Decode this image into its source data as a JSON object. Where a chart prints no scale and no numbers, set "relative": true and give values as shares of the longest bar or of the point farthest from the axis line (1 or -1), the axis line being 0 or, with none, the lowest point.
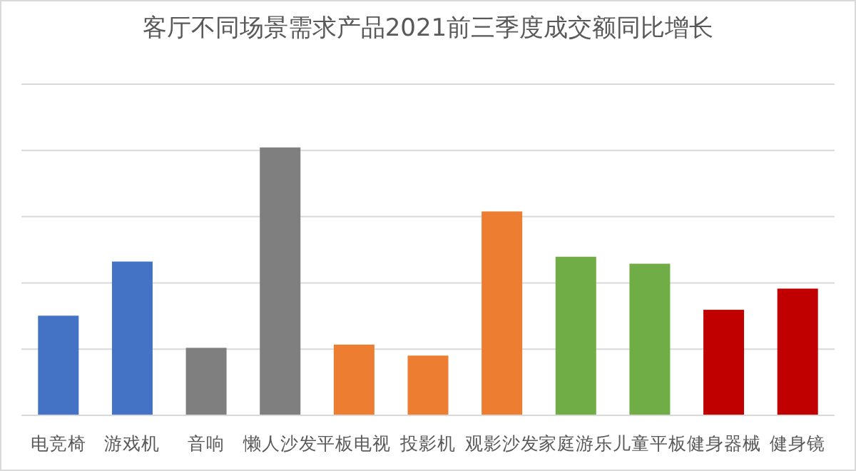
{
  "chart_data": {
    "type": "bar",
    "title": "客厅不同场景需求产品2021前三季度成交额同比增长",
    "relative": true,
    "grid": "y",
    "categories": [
      "电竞椅",
      "游戏机",
      "音响",
      "懒人沙发",
      "平板电视",
      "投影机",
      "观影沙发",
      "家庭游乐",
      "儿童平板",
      "健身器械",
      "健身镜"
    ],
    "values": [
      0.372,
      0.574,
      0.252,
      1,
      0.264,
      0.223,
      0.761,
      0.592,
      0.566,
      0.394,
      0.473
    ],
    "colors": [
      "#4472c4",
      "#4472c4",
      "#7f7f7f",
      "#7f7f7f",
      "#ed7d31",
      "#ed7d31",
      "#ed7d31",
      "#70ad47",
      "#70ad47",
      "#c00000",
      "#c00000"
    ]
  }
}
